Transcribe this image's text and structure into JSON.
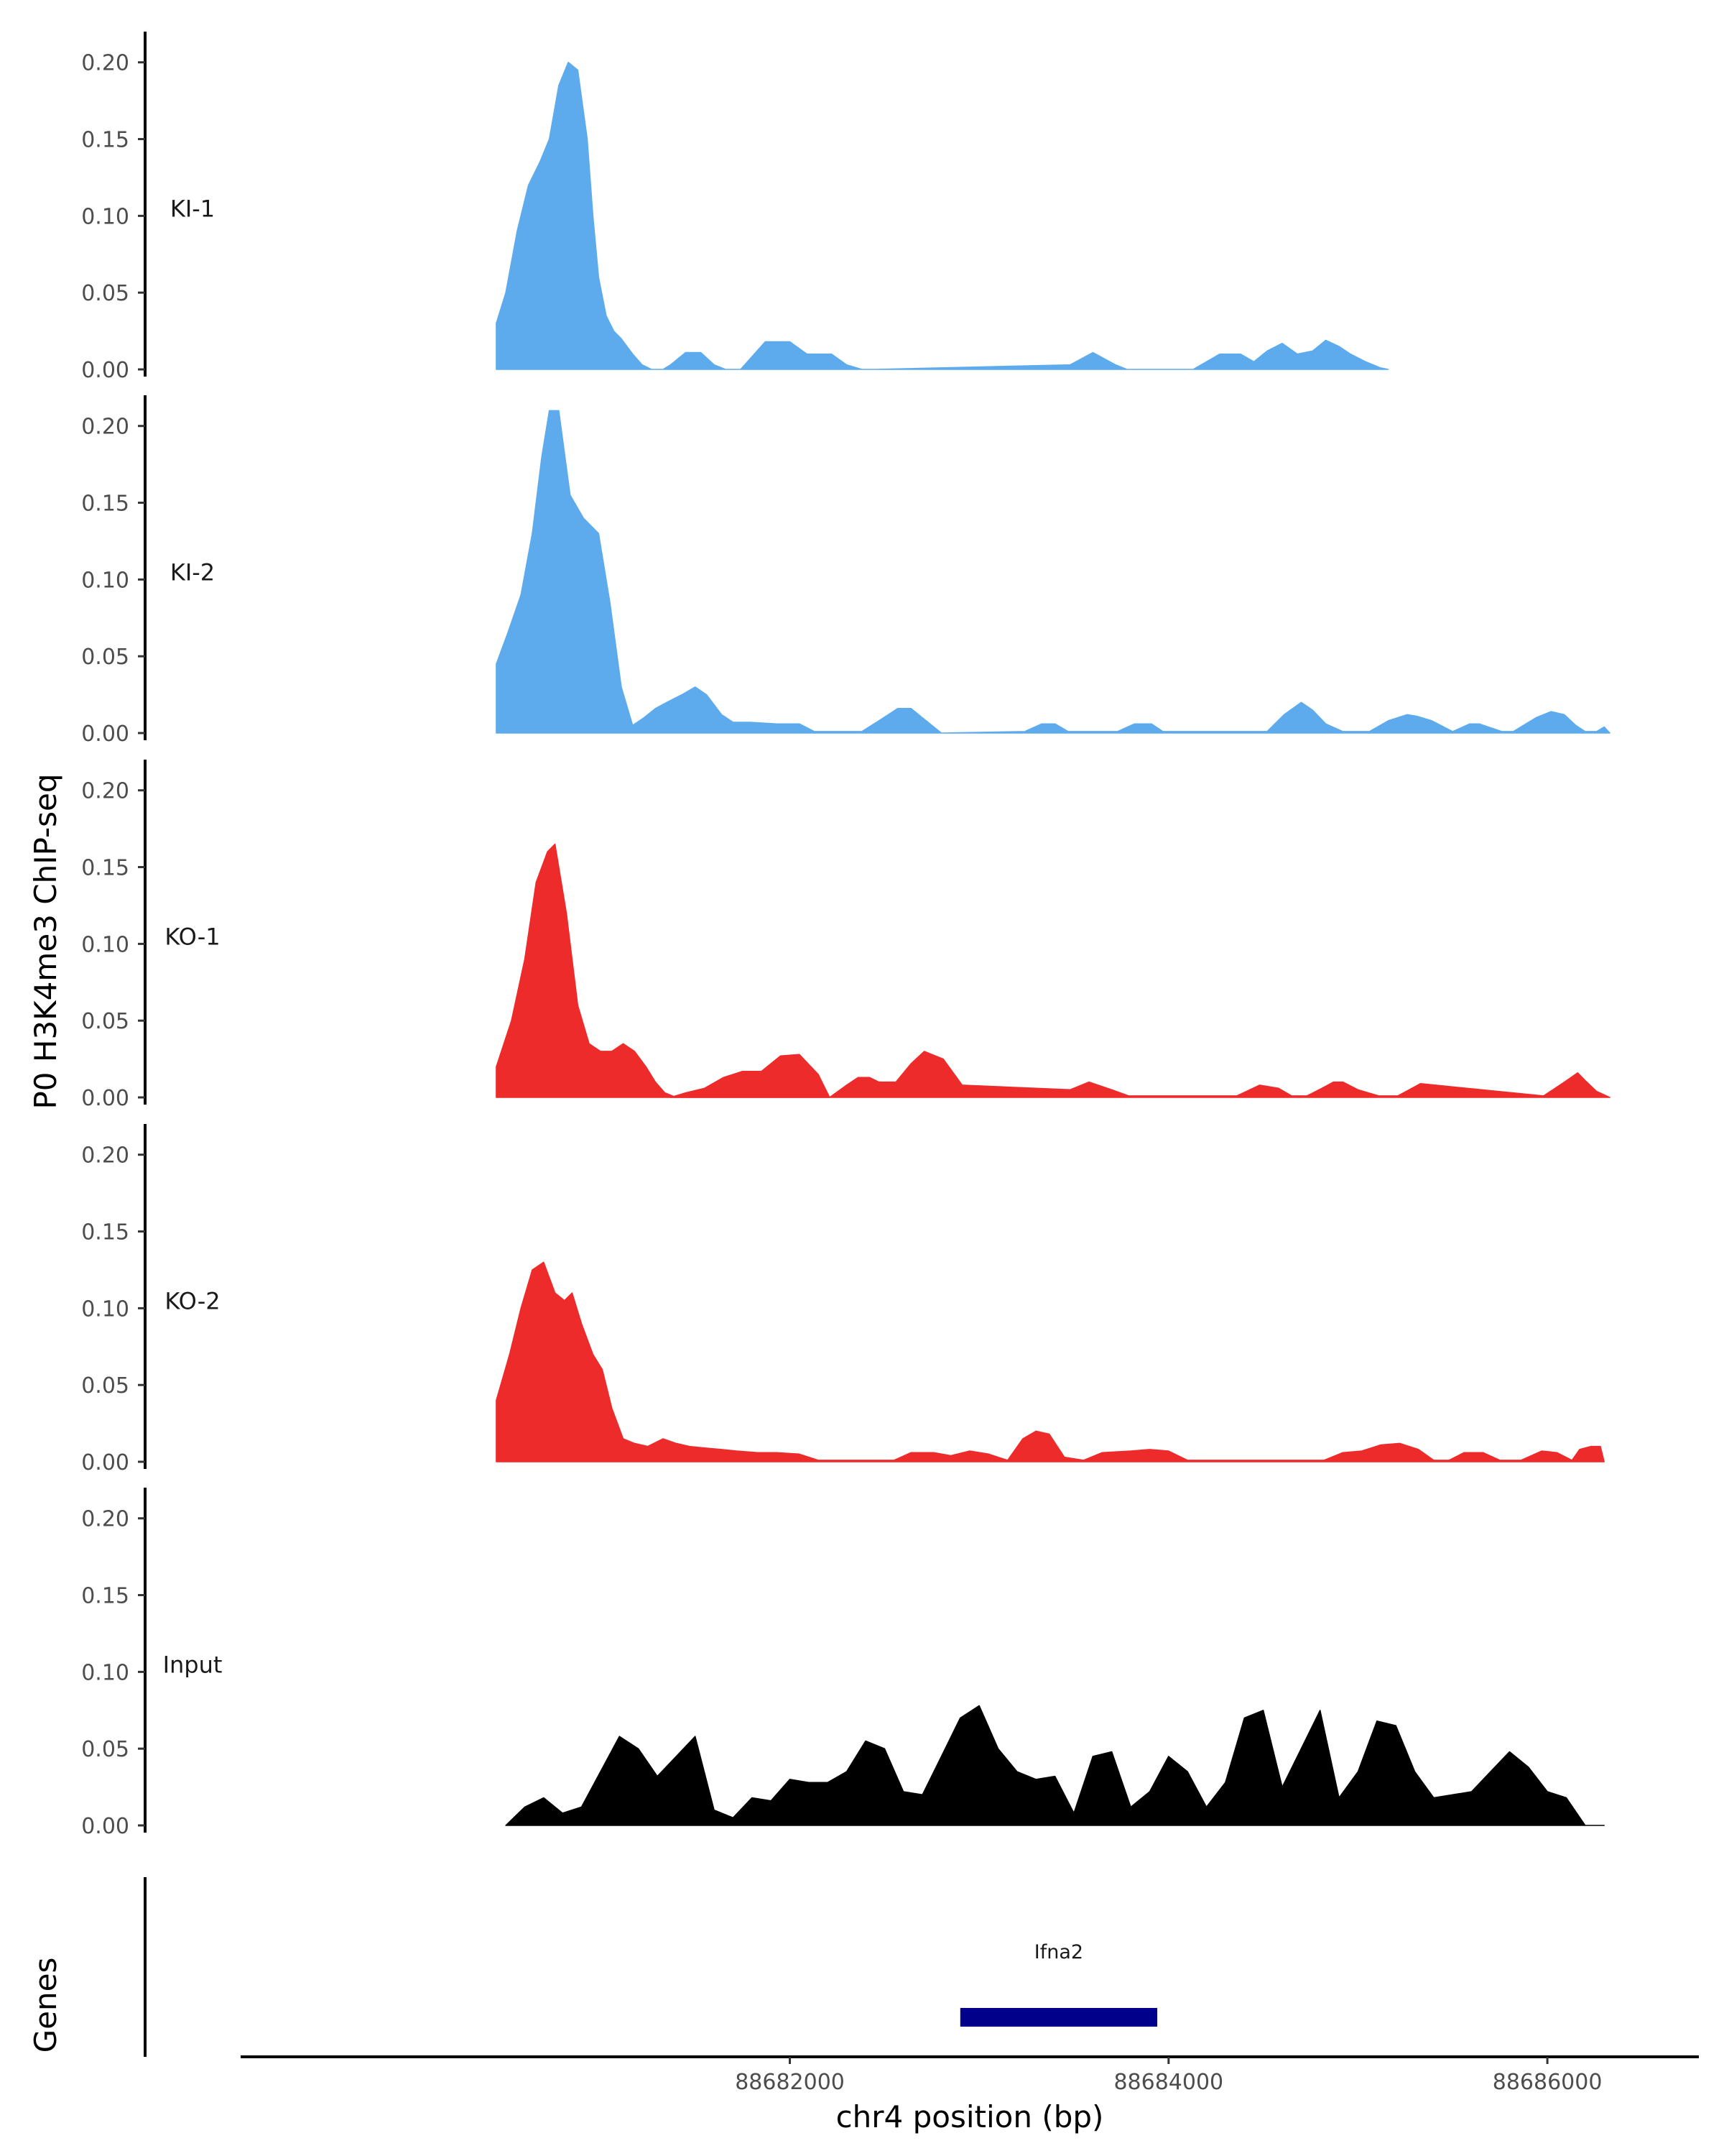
{
  "chart_data": {
    "type": "area",
    "ylabel": "P0 H3K4me3 ChIP-seq",
    "xlabel": "chr4 position (bp)",
    "genes_label": "Genes",
    "ylim": [
      0,
      0.22
    ],
    "yticks": [
      0.0,
      0.05,
      0.1,
      0.15,
      0.2
    ],
    "ytick_labels": [
      "0.00",
      "0.05",
      "0.10",
      "0.15",
      "0.20"
    ],
    "xlim": [
      88679100,
      88686800
    ],
    "xticks": [
      88682000,
      88684000,
      88686000
    ],
    "xtick_labels": [
      "88682000",
      "88684000",
      "88686000"
    ],
    "colors": {
      "KI": "#5dabec",
      "KO": "#ee2b2b",
      "Input": "#000000",
      "gene": "#00008b"
    },
    "tracks": [
      {
        "name": "KI-1",
        "color": "#5dabec",
        "x": [
          88680450,
          88680450,
          88680500,
          88680560,
          88680620,
          88680680,
          88680730,
          88680780,
          88680830,
          88680880,
          88680930,
          88680960,
          88680990,
          88681030,
          88681070,
          88681110,
          88681170,
          88681220,
          88681270,
          88681330,
          88681370,
          88681450,
          88681530,
          88681600,
          88681660,
          88681740,
          88681870,
          88682000,
          88682090,
          88682150,
          88682220,
          88682300,
          88682380,
          88682450,
          88683480,
          88683600,
          88683720,
          88683780,
          88684130,
          88684270,
          88684380,
          88684450,
          88684520,
          88684600,
          88684680,
          88684760,
          88684830,
          88684900,
          88684960,
          88685040,
          88685120,
          88685160
        ],
        "y": [
          0,
          0.03,
          0.05,
          0.09,
          0.12,
          0.135,
          0.15,
          0.185,
          0.2,
          0.195,
          0.15,
          0.1,
          0.06,
          0.035,
          0.025,
          0.02,
          0.01,
          0.003,
          0,
          0,
          0.003,
          0.011,
          0.011,
          0.003,
          0,
          0,
          0.018,
          0.018,
          0.01,
          0.01,
          0.01,
          0.003,
          0,
          0,
          0.003,
          0.011,
          0.003,
          0,
          0,
          0.01,
          0.01,
          0.005,
          0.012,
          0.017,
          0.01,
          0.012,
          0.019,
          0.015,
          0.01,
          0.005,
          0.001,
          0
        ]
      },
      {
        "name": "KI-2",
        "color": "#5dabec",
        "x": [
          88680450,
          88680450,
          88680510,
          88680580,
          88680640,
          88680690,
          88680730,
          88680780,
          88680840,
          88680910,
          88680990,
          88681050,
          88681110,
          88681170,
          88681230,
          88681290,
          88681350,
          88681430,
          88681500,
          88681560,
          88681640,
          88681700,
          88681790,
          88681930,
          88682050,
          88682130,
          88682380,
          88682470,
          88682570,
          88682640,
          88682720,
          88682800,
          88683240,
          88683330,
          88683400,
          88683470,
          88683730,
          88683820,
          88683910,
          88683970,
          88684520,
          88684610,
          88684700,
          88684760,
          88684830,
          88684920,
          88685060,
          88685160,
          88685260,
          88685310,
          88685390,
          88685500,
          88685590,
          88685640,
          88685760,
          88685820,
          88685940,
          88686020,
          88686090,
          88686150,
          88686200,
          88686260,
          88686300,
          88686330
        ],
        "y": [
          0,
          0.045,
          0.065,
          0.09,
          0.13,
          0.18,
          0.21,
          0.21,
          0.155,
          0.14,
          0.13,
          0.085,
          0.03,
          0.005,
          0.01,
          0.016,
          0.02,
          0.025,
          0.03,
          0.025,
          0.012,
          0.007,
          0.007,
          0.006,
          0.006,
          0.001,
          0.001,
          0.008,
          0.016,
          0.016,
          0.008,
          0,
          0.001,
          0.006,
          0.006,
          0.001,
          0.001,
          0.006,
          0.006,
          0.001,
          0.001,
          0.012,
          0.02,
          0.015,
          0.006,
          0.001,
          0.001,
          0.008,
          0.012,
          0.011,
          0.008,
          0.001,
          0.006,
          0.006,
          0.001,
          0.001,
          0.01,
          0.014,
          0.012,
          0.005,
          0.001,
          0.001,
          0.004,
          0
        ]
      },
      {
        "name": "KO-1",
        "color": "#ee2b2b",
        "x": [
          88680450,
          88680450,
          88680530,
          88680600,
          88680660,
          88680720,
          88680760,
          88680820,
          88680880,
          88680940,
          88681000,
          88681060,
          88681120,
          88681180,
          88681240,
          88681290,
          88681340,
          88681400,
          88681450,
          88682210,
          88682300,
          88682360,
          88682420,
          88682470,
          88682560,
          88682640,
          88682710,
          88682810,
          88682910,
          88683480,
          88683580,
          88683700,
          88683790,
          88684360,
          88684480,
          88684580,
          88684650,
          88684730,
          88684810,
          88684870,
          88684920,
          88685000,
          88685110,
          88685210,
          88685330,
          88685980,
          88686090,
          88686160,
          88686200,
          88686260,
          88686330
        ],
        "y": [
          0,
          0.02,
          0.05,
          0.09,
          0.14,
          0.16,
          0.165,
          0.12,
          0.06,
          0.035,
          0.03,
          0.03,
          0.035,
          0.03,
          0.02,
          0.01,
          0.003,
          0,
          0,
          0,
          0.008,
          0.013,
          0.013,
          0.01,
          0.01,
          0.022,
          0.03,
          0.025,
          0.008,
          0.005,
          0.01,
          0.005,
          0.001,
          0.001,
          0.008,
          0.006,
          0.001,
          0.001,
          0.006,
          0.01,
          0.01,
          0.005,
          0.001,
          0.001,
          0.009,
          0.001,
          0.01,
          0.016,
          0.011,
          0.004,
          0
        ],
        "x2": [
          88681370,
          88681450,
          88681550,
          88681650,
          88681750,
          88681850,
          88681950,
          88682050,
          88682150,
          88682210
        ],
        "y2": [
          0,
          0.003,
          0.006,
          0.013,
          0.017,
          0.017,
          0.027,
          0.028,
          0.015,
          0
        ]
      },
      {
        "name": "KO-2",
        "color": "#ee2b2b",
        "x": [
          88680450,
          88680450,
          88680520,
          88680580,
          88680640,
          88680700,
          88680760,
          88680810,
          88680850,
          88680900,
          88680960,
          88681010,
          88681060,
          88681120,
          88681180,
          88681250,
          88681330,
          88681400,
          88681470,
          88681550,
          88681640,
          88681720,
          88681830,
          88681930,
          88682050,
          88682150,
          88682550,
          88682640,
          88682760,
          88682850,
          88682950,
          88683050,
          88683150,
          88683230,
          88683300,
          88683370,
          88683450,
          88683550,
          88683650,
          88683800,
          88683900,
          88684000,
          88684100,
          88684820,
          88684920,
          88685020,
          88685120,
          88685220,
          88685320,
          88685400,
          88685480,
          88685560,
          88685660,
          88685750,
          88685860,
          88685970,
          88686050,
          88686130,
          88686170,
          88686230,
          88686280,
          88686300
        ],
        "y": [
          0,
          0.04,
          0.07,
          0.1,
          0.125,
          0.13,
          0.11,
          0.105,
          0.11,
          0.09,
          0.07,
          0.06,
          0.035,
          0.015,
          0.012,
          0.01,
          0.015,
          0.012,
          0.01,
          0.009,
          0.008,
          0.007,
          0.006,
          0.006,
          0.005,
          0.001,
          0.001,
          0.006,
          0.006,
          0.004,
          0.007,
          0.005,
          0.001,
          0.015,
          0.02,
          0.018,
          0.003,
          0.001,
          0.006,
          0.007,
          0.008,
          0.007,
          0.001,
          0.001,
          0.006,
          0.007,
          0.011,
          0.012,
          0.008,
          0.001,
          0.001,
          0.006,
          0.006,
          0.001,
          0.001,
          0.007,
          0.006,
          0.001,
          0.008,
          0.01,
          0.01,
          0
        ]
      },
      {
        "name": "Input",
        "color": "#000000",
        "x": [
          88680500,
          88680600,
          88680700,
          88680800,
          88680900,
          88681000,
          88681100,
          88681200,
          88681300,
          88681400,
          88681500,
          88681600,
          88681700,
          88681800,
          88681900,
          88682000,
          88682100,
          88682200,
          88682300,
          88682400,
          88682500,
          88682600,
          88682700,
          88682800,
          88682900,
          88683000,
          88683100,
          88683200,
          88683300,
          88683400,
          88683500,
          88683600,
          88683700,
          88683800,
          88683900,
          88684000,
          88684100,
          88684200,
          88684300,
          88684400,
          88684500,
          88684600,
          88684700,
          88684800,
          88684900,
          88685000,
          88685100,
          88685200,
          88685300,
          88685400,
          88685500,
          88685600,
          88685700,
          88685800,
          88685900,
          88686000,
          88686100,
          88686200,
          88686300
        ],
        "y": [
          0,
          0.012,
          0.018,
          0.008,
          0.012,
          0.035,
          0.058,
          0.05,
          0.032,
          0.045,
          0.058,
          0.01,
          0.005,
          0.018,
          0.016,
          0.03,
          0.028,
          0.028,
          0.035,
          0.055,
          0.05,
          0.022,
          0.02,
          0.045,
          0.07,
          0.078,
          0.05,
          0.035,
          0.03,
          0.032,
          0.008,
          0.045,
          0.048,
          0.012,
          0.022,
          0.045,
          0.035,
          0.012,
          0.028,
          0.07,
          0.075,
          0.025,
          0.05,
          0.075,
          0.018,
          0.035,
          0.068,
          0.065,
          0.035,
          0.018,
          0.02,
          0.022,
          0.035,
          0.048,
          0.038,
          0.022,
          0.018,
          0.0,
          0.0
        ]
      }
    ],
    "gene": {
      "name": "Ifna2",
      "start": 88682900,
      "end": 88683940
    }
  }
}
